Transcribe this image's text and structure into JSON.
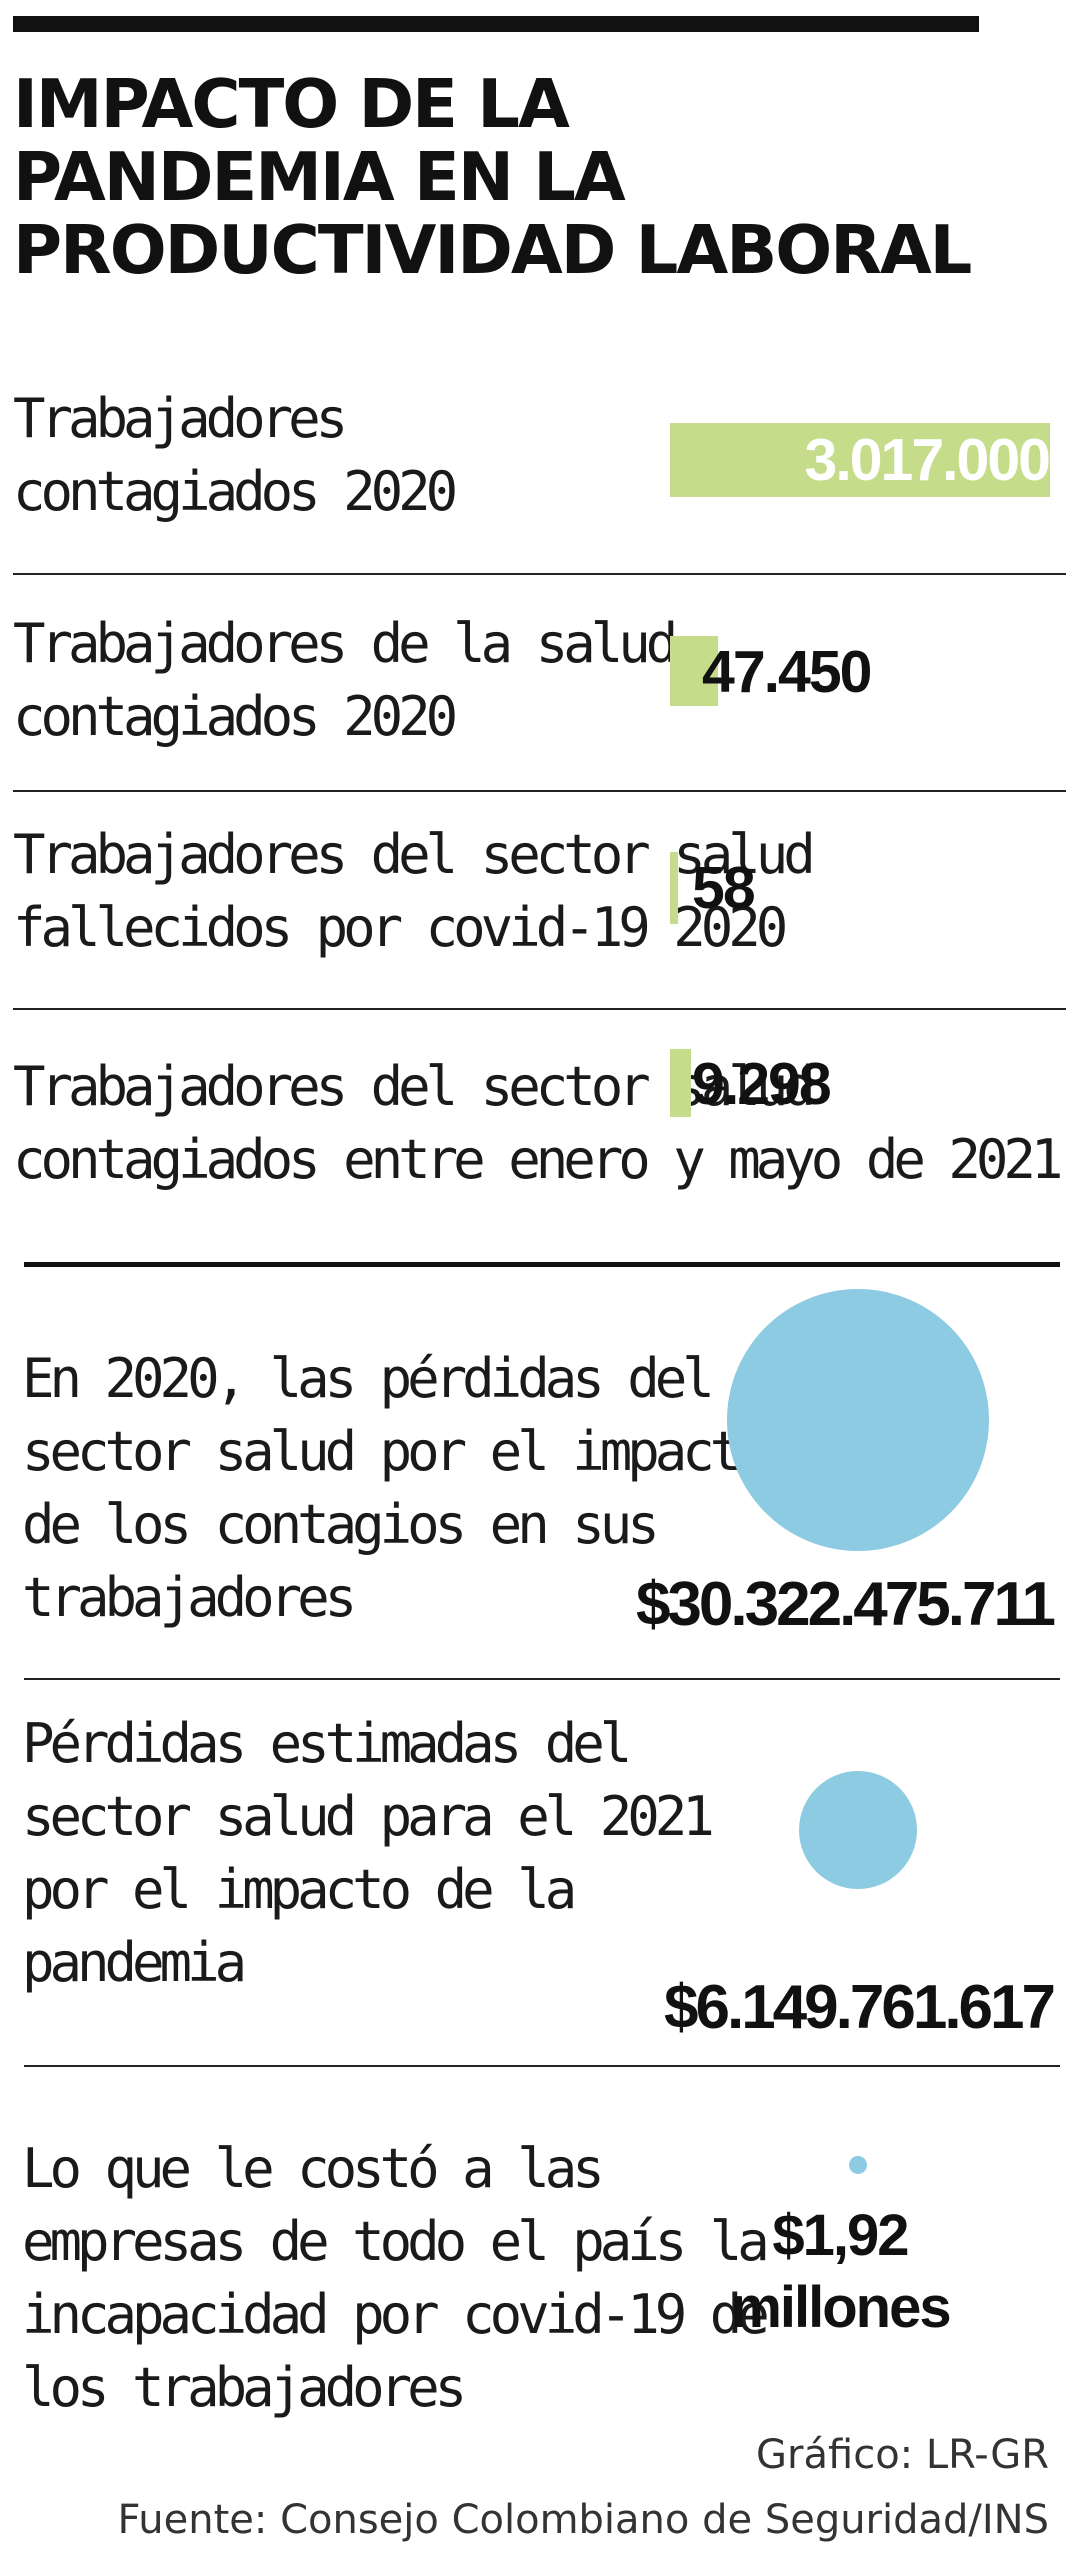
{
  "title": {
    "lines": [
      "IMPACTO DE LA",
      "PANDEMIA EN LA",
      "PRODUCTIVIDAD LABORAL"
    ]
  },
  "colors": {
    "bar": "#c5dc8b",
    "circle": "#8dcbe2",
    "text": "#111111"
  },
  "chart_data": [
    {
      "type": "bar",
      "categories": [
        "Trabajadores contagiados 2020",
        "Trabajadores de la salud contagiados 2020",
        "Trabajadores del sector salud fallecidos por covid-19 2020",
        "Trabajadores del sector salud contagiados entre enero y mayo de 2021"
      ],
      "values": [
        3017000,
        47450,
        58,
        9298
      ],
      "value_labels": [
        "3.017.000",
        "47.450",
        "58",
        "9.298"
      ],
      "label_lines": [
        [
          "Trabajadores",
          "contagiados 2020"
        ],
        [
          "Trabajadores de la salud",
          "contagiados 2020"
        ],
        [
          "Trabajadores del sector salud",
          "fallecidos por covid-19 2020"
        ],
        [
          "Trabajadores del sector salud",
          "contagiados entre enero y mayo de 2021"
        ]
      ],
      "title": "",
      "xlabel": "",
      "ylabel": ""
    },
    {
      "type": "bubble",
      "categories": [
        "En 2020, las pérdidas del sector salud por el impacto de los contagios en sus trabajadores",
        "Pérdidas estimadas del sector salud para el 2021 por el impacto de la pandemia",
        "Lo que le costó a las empresas de todo el país la incapacidad por covid-19 de los trabajadores"
      ],
      "values": [
        30322475711,
        6149761617,
        1920000
      ],
      "value_labels": [
        "$30.322.475.711",
        "$6.149.761.617",
        "$1,92 millones"
      ],
      "value_label_lines": [
        [
          "$30.322.475.711"
        ],
        [
          "$6.149.761.617"
        ],
        [
          "$1,92",
          "millones"
        ]
      ],
      "label_lines": [
        [
          "En 2020, las pérdidas del",
          "sector salud por el impacto",
          "de los contagios en sus",
          "trabajadores"
        ],
        [
          "Pérdidas estimadas del",
          "sector salud para el 2021",
          "por el impacto de la",
          "pandemia"
        ],
        [
          "Lo que le costó a las",
          "empresas de todo el país la",
          "incapacidad por covid-19 de",
          "los trabajadores"
        ]
      ]
    }
  ],
  "footer": {
    "credit": "Gráfico: LR-GR",
    "source": "Fuente: Consejo Colombiano de Seguridad/INS"
  }
}
